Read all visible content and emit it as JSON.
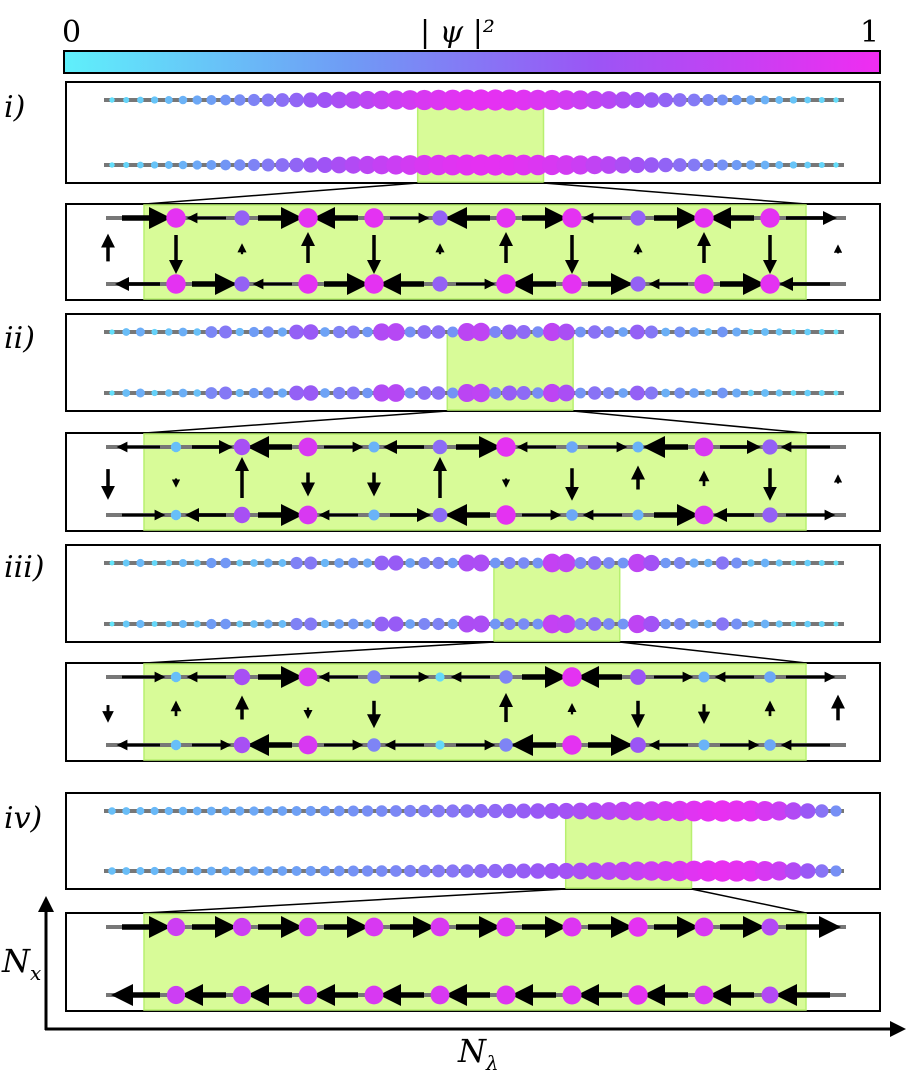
{
  "colorbar": {
    "min_label": "0",
    "max_label": "1",
    "title": "| ψ |²",
    "colors": [
      "#5ff0fb",
      "#6f9bf5",
      "#9b55f5",
      "#f02cf1"
    ]
  },
  "panels": [
    {
      "label": "i)",
      "overview": {
        "top_amp": [
          0.08,
          0.15,
          0.22,
          0.3,
          0.38,
          0.46,
          0.55,
          0.64,
          0.72,
          0.8,
          0.86,
          0.91,
          0.94,
          0.96,
          0.94,
          0.91,
          0.86,
          0.78,
          0.69,
          0.6,
          0.5,
          0.4,
          0.31,
          0.22,
          0.15,
          0.08
        ],
        "bottom_amp": [
          0.08,
          0.15,
          0.22,
          0.3,
          0.38,
          0.46,
          0.55,
          0.64,
          0.72,
          0.8,
          0.86,
          0.91,
          0.94,
          0.96,
          0.94,
          0.91,
          0.86,
          0.78,
          0.69,
          0.6,
          0.5,
          0.4,
          0.31,
          0.22,
          0.15,
          0.08
        ],
        "highlight_start": 0.505,
        "highlight_end": 0.675
      },
      "zoom": {
        "top_amp": [
          0.95,
          0.6,
          0.95,
          0.95,
          0.6,
          0.95,
          0.95,
          0.6,
          0.95,
          0.95
        ],
        "bottom_amp": [
          0.95,
          0.6,
          0.95,
          0.95,
          0.6,
          0.95,
          0.95,
          0.6,
          0.95,
          0.95
        ],
        "vertical": [
          -2,
          0.4,
          1.5,
          -2,
          0.4,
          1.5,
          -2,
          0.4,
          1.5,
          -2
        ],
        "edge_left": 1.3,
        "edge_right": 0.3,
        "top_flow": [
          0,
          0,
          0,
          0,
          0,
          0,
          0,
          0,
          0,
          0,
          0
        ],
        "bottom_flow": [
          0,
          0,
          0,
          0,
          0,
          0,
          0,
          0,
          0,
          0,
          0
        ],
        "top_weight": [
          1,
          0.3,
          1,
          1,
          0.3,
          1,
          1,
          0.3,
          1,
          1,
          0.5
        ],
        "bottom_weight": [
          0.5,
          1,
          0.3,
          1,
          1,
          0.3,
          1,
          1,
          0.3,
          1,
          0.5
        ]
      }
    },
    {
      "label": "ii)",
      "overview": {
        "top_amp": [
          0.15,
          0.3,
          0.2,
          0.4,
          0.55,
          0.35,
          0.6,
          0.7,
          0.45,
          0.75,
          0.85,
          0.5,
          0.8,
          0.9,
          0.55,
          0.85,
          0.75,
          0.45,
          0.65,
          0.5,
          0.35,
          0.4,
          0.25,
          0.2,
          0.15,
          0.1
        ],
        "bottom_amp": [
          0.15,
          0.3,
          0.2,
          0.4,
          0.55,
          0.35,
          0.6,
          0.7,
          0.45,
          0.75,
          0.85,
          0.5,
          0.8,
          0.9,
          0.55,
          0.85,
          0.75,
          0.45,
          0.65,
          0.5,
          0.35,
          0.4,
          0.25,
          0.2,
          0.15,
          0.1
        ],
        "highlight_start": 0.545,
        "highlight_end": 0.715
      },
      "zoom": {
        "top_amp": [
          0.2,
          0.7,
          0.9,
          0.25,
          0.55,
          0.95,
          0.3,
          0.25,
          0.9,
          0.6
        ],
        "bottom_amp": [
          0.2,
          0.7,
          0.9,
          0.25,
          0.55,
          0.95,
          0.3,
          0.25,
          0.9,
          0.6
        ],
        "vertical": [
          -0.3,
          2,
          -1,
          -1,
          2,
          -0.3,
          -1.5,
          1,
          0.6,
          -1.5
        ],
        "edge_left": -1.4,
        "edge_right": 0.3,
        "top_flow": [
          0,
          0,
          0,
          0,
          0,
          0,
          0,
          0,
          0,
          0,
          0
        ],
        "bottom_flow": [
          0,
          0,
          0,
          0,
          0,
          0,
          0,
          0,
          0,
          0,
          0
        ],
        "top_weight": [
          0.3,
          0.5,
          1,
          0.3,
          0.5,
          1,
          0.3,
          0.3,
          1,
          0.5,
          0.3
        ],
        "bottom_weight": [
          0.3,
          0.5,
          1,
          0.3,
          0.5,
          1,
          0.3,
          0.3,
          1,
          0.5,
          0.3
        ]
      }
    },
    {
      "label": "iii)",
      "overview": {
        "top_amp": [
          0.1,
          0.25,
          0.15,
          0.35,
          0.4,
          0.2,
          0.45,
          0.55,
          0.3,
          0.6,
          0.7,
          0.4,
          0.75,
          0.8,
          0.35,
          0.85,
          0.9,
          0.4,
          0.85,
          0.7,
          0.3,
          0.55,
          0.35,
          0.2,
          0.15,
          0.1
        ],
        "bottom_amp": [
          0.1,
          0.25,
          0.15,
          0.35,
          0.4,
          0.2,
          0.45,
          0.55,
          0.3,
          0.6,
          0.7,
          0.4,
          0.75,
          0.8,
          0.35,
          0.85,
          0.9,
          0.4,
          0.85,
          0.7,
          0.3,
          0.55,
          0.35,
          0.2,
          0.15,
          0.1
        ],
        "highlight_start": 0.608,
        "highlight_end": 0.778
      },
      "zoom": {
        "top_amp": [
          0.2,
          0.7,
          0.9,
          0.45,
          0.1,
          0.45,
          0.95,
          0.65,
          0.25,
          0.3
        ],
        "bottom_amp": [
          0.2,
          0.7,
          0.9,
          0.45,
          0.1,
          0.45,
          0.95,
          0.65,
          0.25,
          0.3
        ],
        "vertical": [
          0.6,
          1,
          -0.4,
          -1.2,
          -0.2,
          1.3,
          0.4,
          -1.2,
          -0.8,
          0.6
        ],
        "edge_left": -0.7,
        "edge_right": 1.1,
        "top_flow": [
          0,
          0,
          0,
          0,
          0,
          0,
          0,
          0,
          0,
          0,
          0
        ],
        "bottom_flow": [
          0,
          0,
          0,
          0,
          0,
          0,
          0,
          0,
          0,
          0,
          0
        ],
        "top_weight": [
          0.3,
          0.3,
          1,
          0.3,
          0.3,
          0.3,
          1,
          1,
          0.3,
          0.3,
          0.3
        ],
        "bottom_weight": [
          0.3,
          0.3,
          1,
          0.3,
          0.3,
          0.3,
          1,
          1,
          0.3,
          0.3,
          0.3
        ]
      }
    },
    {
      "label": "iv)",
      "overview": {
        "top_amp": [
          0.2,
          0.22,
          0.24,
          0.26,
          0.28,
          0.3,
          0.32,
          0.35,
          0.38,
          0.41,
          0.44,
          0.48,
          0.52,
          0.56,
          0.6,
          0.65,
          0.7,
          0.76,
          0.82,
          0.88,
          0.93,
          0.97,
          0.95,
          0.85,
          0.65,
          0.4
        ],
        "bottom_amp": [
          0.2,
          0.22,
          0.24,
          0.26,
          0.28,
          0.3,
          0.32,
          0.35,
          0.38,
          0.41,
          0.44,
          0.48,
          0.52,
          0.56,
          0.6,
          0.65,
          0.7,
          0.76,
          0.82,
          0.88,
          0.93,
          0.97,
          0.95,
          0.85,
          0.65,
          0.4
        ],
        "highlight_start": 0.705,
        "highlight_end": 0.875
      },
      "zoom": {
        "top_amp": [
          0.85,
          0.85,
          0.88,
          0.9,
          0.9,
          0.92,
          0.92,
          0.95,
          0.9,
          0.75
        ],
        "bottom_amp": [
          0.85,
          0.85,
          0.88,
          0.9,
          0.9,
          0.92,
          0.92,
          0.95,
          0.9,
          0.75
        ],
        "vertical": [
          0.2,
          0.2,
          0.2,
          0.2,
          0.2,
          -0.2,
          -0.2,
          -0.2,
          -0.2,
          -0.2
        ],
        "edge_left": 0.2,
        "edge_right": -0.2,
        "top_flow": [
          1,
          1,
          1,
          1,
          1,
          1,
          1,
          1,
          1,
          1,
          1
        ],
        "bottom_flow": [
          -1,
          -1,
          -1,
          -1,
          -1,
          -1,
          -1,
          -1,
          -1,
          -1,
          -1
        ],
        "top_weight": [
          1,
          1,
          1,
          1,
          1,
          1,
          1,
          1,
          1,
          1,
          1
        ],
        "bottom_weight": [
          1,
          1,
          1,
          1,
          1,
          1,
          1,
          1,
          1,
          1,
          1
        ]
      }
    }
  ],
  "axes": {
    "y_label": "N",
    "y_sub": "x",
    "x_label": "N",
    "x_sub": "λ"
  }
}
